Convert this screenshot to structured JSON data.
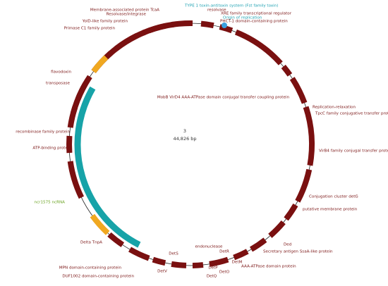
{
  "map": {
    "name": "3",
    "length": "44,826 bp",
    "labels": [
      "TYPE 1 toxin-antitoxin system (Fst family toxin)",
      "resolvase",
      "XRE family transcriptional regulator",
      "Origin of replication",
      "PHCT-1 domain-containing protein",
      "Membrane-associated protein TcaA",
      "Resolvase/integrase",
      "YolD-like family protein",
      "Primase C1 family protein",
      "flavodoxin",
      "transposase",
      "recombinase family protein",
      "ATP-binding protein",
      "ncr1575 ncRNA",
      "Delta TnpA",
      "MPN domain-containing protein",
      "DUF1002 domain-containing protein",
      "MobB VirD4 AAA-ATPase domain conjugal transfer coupling protein",
      "Replication-relaxation",
      "TpcC family conjugative transfer protein",
      "VirB4 family conjugal transfer protein",
      "Conjugation cluster detG",
      "putative membrane protein",
      "Ded",
      "Secretary antigen SsaA-like protein",
      "AAA-ATPase domain protein",
      "endonuclease",
      "DetS",
      "DetR",
      "DetP",
      "DetQ",
      "DetO",
      "DetM",
      "DetV"
    ]
  }
}
